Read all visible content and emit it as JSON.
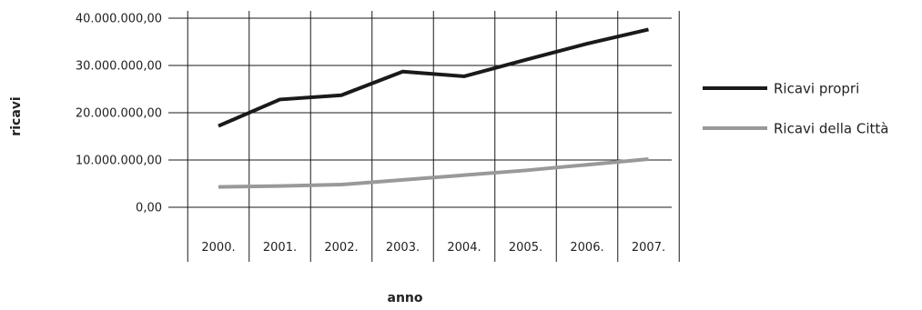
{
  "chart_data": {
    "type": "line",
    "categories": [
      "2000.",
      "2001.",
      "2002.",
      "2003.",
      "2004.",
      "2005.",
      "2006.",
      "2007."
    ],
    "series": [
      {
        "name": "Ricavi propri",
        "color": "#1a1a1a",
        "values": [
          17200000,
          22800000,
          23700000,
          28700000,
          27700000,
          31200000,
          34600000,
          37600000
        ]
      },
      {
        "name": "Ricavi della Città",
        "color": "#999999",
        "values": [
          4300000,
          4500000,
          4800000,
          5800000,
          6800000,
          7800000,
          9000000,
          10200000
        ]
      }
    ],
    "y_ticks": [
      "0,00",
      "10.000.000,00",
      "20.000.000,00",
      "30.000.000,00",
      "40.000.000,00"
    ],
    "ylim": [
      0,
      40000000
    ],
    "xlabel": "anno",
    "ylabel": "ricavi",
    "grid": true,
    "legend_position": "right"
  }
}
